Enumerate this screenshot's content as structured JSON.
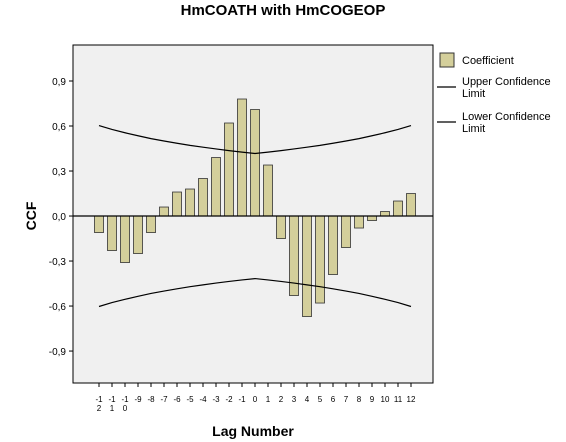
{
  "chart_data": {
    "type": "bar",
    "title": "HmCOATH with HmCOGEOP",
    "x_label": "Lag Number",
    "y_label": "CCF",
    "categories": [
      "-12",
      "-11",
      "-10",
      "-9",
      "-8",
      "-7",
      "-6",
      "-5",
      "-4",
      "-3",
      "-2",
      "-1",
      "0",
      "1",
      "2",
      "3",
      "4",
      "5",
      "6",
      "7",
      "8",
      "9",
      "10",
      "11",
      "12"
    ],
    "series": [
      {
        "name": "Coefficient",
        "type": "bar",
        "color": "#d4cf9b",
        "values": [
          -0.11,
          -0.23,
          -0.31,
          -0.25,
          -0.11,
          0.06,
          0.16,
          0.18,
          0.25,
          0.39,
          0.62,
          0.78,
          0.71,
          0.34,
          -0.15,
          -0.53,
          -0.67,
          -0.58,
          -0.39,
          -0.21,
          -0.08,
          -0.03,
          0.03,
          0.1,
          0.15
        ]
      },
      {
        "name": "Upper Confidence Limit",
        "type": "line",
        "color": "#000000",
        "values": [
          0.603,
          0.577,
          0.555,
          0.535,
          0.516,
          0.5,
          0.485,
          0.471,
          0.459,
          0.447,
          0.436,
          0.426,
          0.417,
          0.426,
          0.436,
          0.447,
          0.459,
          0.471,
          0.485,
          0.5,
          0.516,
          0.535,
          0.555,
          0.577,
          0.603
        ]
      },
      {
        "name": "Lower Confidence Limit",
        "type": "line",
        "color": "#000000",
        "values": [
          -0.603,
          -0.577,
          -0.555,
          -0.535,
          -0.516,
          -0.5,
          -0.485,
          -0.471,
          -0.459,
          -0.447,
          -0.436,
          -0.426,
          -0.417,
          -0.426,
          -0.436,
          -0.447,
          -0.459,
          -0.471,
          -0.485,
          -0.5,
          -0.516,
          -0.535,
          -0.555,
          -0.577,
          -0.603
        ]
      }
    ],
    "ylim": [
      -1.113,
      1.14
    ],
    "yticks": [
      {
        "value": -0.9,
        "label": "-0,9"
      },
      {
        "value": -0.6,
        "label": "-0,6"
      },
      {
        "value": -0.3,
        "label": "-0,3"
      },
      {
        "value": 0,
        "label": "0,0"
      },
      {
        "value": 0.3,
        "label": "0,3"
      },
      {
        "value": 0.6,
        "label": "0,6"
      },
      {
        "value": 0.9,
        "label": "0,9"
      }
    ]
  }
}
